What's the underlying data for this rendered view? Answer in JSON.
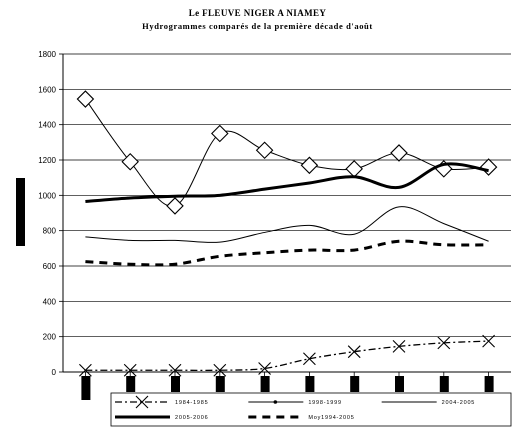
{
  "chart_data": {
    "type": "line",
    "title": "Le FLEUVE NIGER A NIAMEY",
    "subtitle": "Hydrogrammes comparés de la première décade d'août",
    "xlabel": "",
    "ylabel": "",
    "ylim": [
      0,
      1800
    ],
    "yticks": [
      "0",
      "200",
      "400",
      "600",
      "800",
      "1000",
      "1200",
      "1400",
      "1600",
      "1800"
    ],
    "grid": true,
    "legend_position": "bottom",
    "x_count": 10,
    "series": [
      {
        "name": "1984-1985",
        "style": "dashdot-x",
        "color": "#000000",
        "values": [
          10,
          10,
          10,
          10,
          20,
          75,
          115,
          145,
          165,
          175
        ]
      },
      {
        "name": "1998-1999",
        "style": "thin-diamond",
        "color": "#000000",
        "values": [
          1545,
          1190,
          940,
          1350,
          1255,
          1170,
          1150,
          1240,
          1150,
          1160
        ]
      },
      {
        "name": "2004-2005",
        "style": "thin",
        "color": "#000000",
        "values": [
          765,
          745,
          745,
          735,
          790,
          830,
          780,
          935,
          840,
          740
        ]
      },
      {
        "name": "2005-2006",
        "style": "thick",
        "color": "#000000",
        "values": [
          965,
          985,
          995,
          1000,
          1035,
          1070,
          1105,
          1045,
          1175,
          1140
        ]
      },
      {
        "name": "Moy1994-2005",
        "style": "thick-dash",
        "color": "#000000",
        "values": [
          625,
          610,
          610,
          655,
          675,
          690,
          690,
          740,
          720,
          720
        ]
      }
    ]
  }
}
